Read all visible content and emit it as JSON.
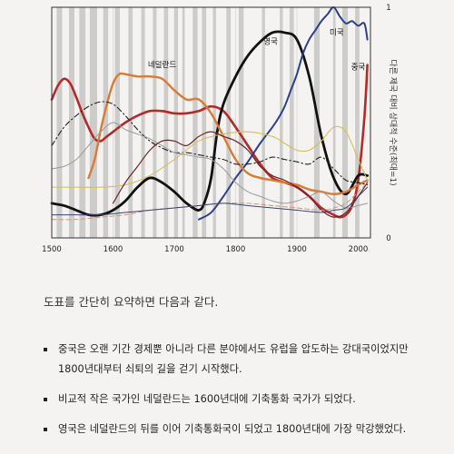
{
  "chart_data": {
    "type": "line",
    "xlim": [
      1500,
      2020
    ],
    "ylim": [
      0,
      1
    ],
    "x_ticks": [
      "1500",
      "1600",
      "1700",
      "1800",
      "1900",
      "2000"
    ],
    "y_ticks": [
      "0",
      "1"
    ],
    "ylabel": "다른 제국 대비 상대적 수준(최대=1)",
    "annotations": [
      "네덜란드",
      "영국",
      "미국",
      "중국"
    ],
    "series": [
      {
        "name": "중국",
        "color": "#b52a26",
        "width": 2.6,
        "dash": "",
        "x": [
          1500,
          1510,
          1520,
          1530,
          1540,
          1550,
          1560,
          1570,
          1580,
          1590,
          1600,
          1620,
          1640,
          1660,
          1680,
          1700,
          1720,
          1740,
          1760,
          1780,
          1800,
          1820,
          1840,
          1860,
          1880,
          1900,
          1920,
          1940,
          1960,
          1970,
          1980,
          1990,
          2000,
          2010,
          2015
        ],
        "y": [
          0.6,
          0.66,
          0.69,
          0.67,
          0.61,
          0.54,
          0.48,
          0.43,
          0.42,
          0.44,
          0.46,
          0.5,
          0.53,
          0.55,
          0.55,
          0.54,
          0.54,
          0.55,
          0.57,
          0.55,
          0.48,
          0.4,
          0.32,
          0.26,
          0.24,
          0.22,
          0.18,
          0.13,
          0.1,
          0.09,
          0.1,
          0.14,
          0.25,
          0.52,
          0.75
        ]
      },
      {
        "name": "영국",
        "color": "#111111",
        "width": 2.8,
        "dash": "",
        "x": [
          1500,
          1520,
          1540,
          1560,
          1580,
          1600,
          1620,
          1640,
          1660,
          1680,
          1700,
          1720,
          1740,
          1750,
          1760,
          1770,
          1780,
          1800,
          1820,
          1840,
          1860,
          1880,
          1900,
          1920,
          1940,
          1960,
          1980,
          2000,
          2015
        ],
        "y": [
          0.15,
          0.14,
          0.12,
          0.1,
          0.1,
          0.12,
          0.16,
          0.22,
          0.26,
          0.24,
          0.2,
          0.15,
          0.12,
          0.16,
          0.26,
          0.46,
          0.58,
          0.7,
          0.79,
          0.85,
          0.89,
          0.89,
          0.86,
          0.7,
          0.44,
          0.26,
          0.19,
          0.27,
          0.27
        ]
      },
      {
        "name": "미국",
        "color": "#2b3f8c",
        "width": 2.0,
        "dash": "",
        "x": [
          1740,
          1760,
          1780,
          1800,
          1820,
          1840,
          1860,
          1870,
          1880,
          1890,
          1900,
          1910,
          1920,
          1930,
          1940,
          1950,
          1960,
          1970,
          1980,
          1990,
          2000,
          2010,
          2015
        ],
        "y": [
          0.08,
          0.11,
          0.18,
          0.26,
          0.33,
          0.41,
          0.48,
          0.52,
          0.57,
          0.64,
          0.71,
          0.8,
          0.86,
          0.9,
          0.94,
          0.97,
          1.0,
          0.96,
          0.93,
          0.94,
          0.92,
          0.93,
          0.86
        ]
      },
      {
        "name": "네덜란드",
        "color": "#d97b35",
        "width": 2.4,
        "dash": "",
        "x": [
          1560,
          1570,
          1580,
          1590,
          1600,
          1610,
          1620,
          1640,
          1660,
          1680,
          1700,
          1720,
          1740,
          1760,
          1780,
          1800,
          1820,
          1840,
          1860,
          1880,
          1900,
          1920,
          1940,
          1960,
          1980,
          2000,
          2015
        ],
        "y": [
          0.26,
          0.34,
          0.47,
          0.58,
          0.67,
          0.71,
          0.71,
          0.7,
          0.7,
          0.69,
          0.64,
          0.6,
          0.6,
          0.54,
          0.44,
          0.34,
          0.28,
          0.26,
          0.25,
          0.24,
          0.23,
          0.21,
          0.2,
          0.19,
          0.2,
          0.23,
          0.25
        ]
      },
      {
        "name": "other-dashdot",
        "color": "#222222",
        "width": 1.1,
        "dash": "6,3,1.5,3",
        "x": [
          1500,
          1520,
          1540,
          1560,
          1580,
          1600,
          1620,
          1640,
          1660,
          1680,
          1700,
          1720,
          1740,
          1760,
          1780,
          1800,
          1820,
          1840,
          1860,
          1880,
          1900,
          1920,
          1940,
          1960,
          1980,
          2000,
          2015
        ],
        "y": [
          0.4,
          0.48,
          0.53,
          0.57,
          0.59,
          0.58,
          0.53,
          0.47,
          0.42,
          0.39,
          0.37,
          0.37,
          0.36,
          0.35,
          0.34,
          0.32,
          0.32,
          0.33,
          0.35,
          0.34,
          0.33,
          0.32,
          0.35,
          0.3,
          0.25,
          0.24,
          0.23
        ]
      },
      {
        "name": "other-yellow",
        "color": "#d6bd5c",
        "width": 1.1,
        "dash": "",
        "x": [
          1500,
          1540,
          1580,
          1620,
          1660,
          1700,
          1740,
          1780,
          1820,
          1860,
          1880,
          1900,
          1920,
          1940,
          1960,
          1980,
          2000,
          2015
        ],
        "y": [
          0.22,
          0.22,
          0.22,
          0.23,
          0.27,
          0.34,
          0.42,
          0.45,
          0.46,
          0.44,
          0.41,
          0.38,
          0.38,
          0.42,
          0.48,
          0.46,
          0.34,
          0.25
        ]
      },
      {
        "name": "other-gray",
        "color": "#9a9a9a",
        "width": 1.0,
        "dash": "",
        "x": [
          1500,
          1520,
          1540,
          1560,
          1580,
          1600,
          1620,
          1640,
          1660,
          1680,
          1700,
          1720,
          1740,
          1760,
          1780,
          1800,
          1820,
          1840,
          1860,
          1880,
          1900,
          1920,
          1940,
          1960,
          1980,
          2000,
          2015
        ],
        "y": [
          0.3,
          0.31,
          0.34,
          0.4,
          0.46,
          0.5,
          0.47,
          0.45,
          0.43,
          0.4,
          0.37,
          0.36,
          0.35,
          0.34,
          0.3,
          0.24,
          0.2,
          0.18,
          0.16,
          0.15,
          0.16,
          0.18,
          0.2,
          0.16,
          0.13,
          0.14,
          0.15
        ]
      },
      {
        "name": "other-maroon",
        "color": "#6e2327",
        "width": 1.2,
        "dash": "",
        "x": [
          1600,
          1620,
          1640,
          1660,
          1680,
          1700,
          1720,
          1740,
          1760,
          1780,
          1800,
          1820,
          1840,
          1860,
          1880,
          1900,
          1920,
          1940,
          1960,
          1980,
          2000,
          2015
        ],
        "y": [
          0.15,
          0.24,
          0.31,
          0.38,
          0.42,
          0.42,
          0.4,
          0.44,
          0.46,
          0.44,
          0.42,
          0.38,
          0.31,
          0.27,
          0.25,
          0.22,
          0.18,
          0.12,
          0.09,
          0.11,
          0.18,
          0.24
        ]
      },
      {
        "name": "other-salmon-dash",
        "color": "#d8927a",
        "width": 1.0,
        "dash": "5,3",
        "x": [
          1500,
          1540,
          1580,
          1620,
          1660,
          1700,
          1740,
          1780,
          1820,
          1860,
          1900,
          1940,
          1960,
          1980,
          2000,
          2015
        ],
        "y": [
          0.08,
          0.08,
          0.09,
          0.1,
          0.12,
          0.13,
          0.14,
          0.15,
          0.15,
          0.14,
          0.13,
          0.12,
          0.13,
          0.15,
          0.2,
          0.24
        ]
      },
      {
        "name": "other-navy",
        "color": "#39456e",
        "width": 1.0,
        "dash": "",
        "x": [
          1500,
          1540,
          1580,
          1620,
          1660,
          1700,
          1740,
          1780,
          1820,
          1860,
          1900,
          1940,
          1960,
          1980,
          2000,
          2015
        ],
        "y": [
          0.1,
          0.1,
          0.1,
          0.11,
          0.12,
          0.13,
          0.14,
          0.15,
          0.14,
          0.13,
          0.12,
          0.11,
          0.12,
          0.13,
          0.18,
          0.22
        ]
      }
    ],
    "shaded_periods": [
      [
        1508,
        1517
      ],
      [
        1528,
        1537
      ],
      [
        1545,
        1555
      ],
      [
        1562,
        1574
      ],
      [
        1584,
        1592
      ],
      [
        1603,
        1611
      ],
      [
        1625,
        1632
      ],
      [
        1646,
        1652
      ],
      [
        1665,
        1671
      ],
      [
        1683,
        1690
      ],
      [
        1700,
        1706
      ],
      [
        1713,
        1717
      ],
      [
        1730,
        1738
      ],
      [
        1745,
        1752
      ],
      [
        1763,
        1768
      ],
      [
        1785,
        1792
      ],
      [
        1805,
        1813
      ],
      [
        1843,
        1848
      ],
      [
        1872,
        1877
      ],
      [
        1888,
        1895
      ],
      [
        1928,
        1937
      ],
      [
        1959,
        1963
      ],
      [
        1974,
        1983
      ],
      [
        1995,
        2002
      ]
    ]
  },
  "body": {
    "summary": "도표를 간단히 요약하면 다음과 같다.",
    "bullets": [
      "중국은 오랜 기간 경제뿐 아니라 다른 분야에서도 유럽을 압도하는 강대국이었지만 1800년대부터 쇠퇴의 길을 걷기 시작했다.",
      "비교적 작은 국가인 네덜란드는 1600년대에 기축통화 국가가 되었다.",
      "영국은 네덜란드의 뒤를 이어 기축통화국이 되었고 1800년대에 가장 막강했었다."
    ]
  },
  "colors": {
    "background": "#f4f3f1",
    "shading": "#c2c2c2",
    "grid": "#cfcfcf"
  }
}
